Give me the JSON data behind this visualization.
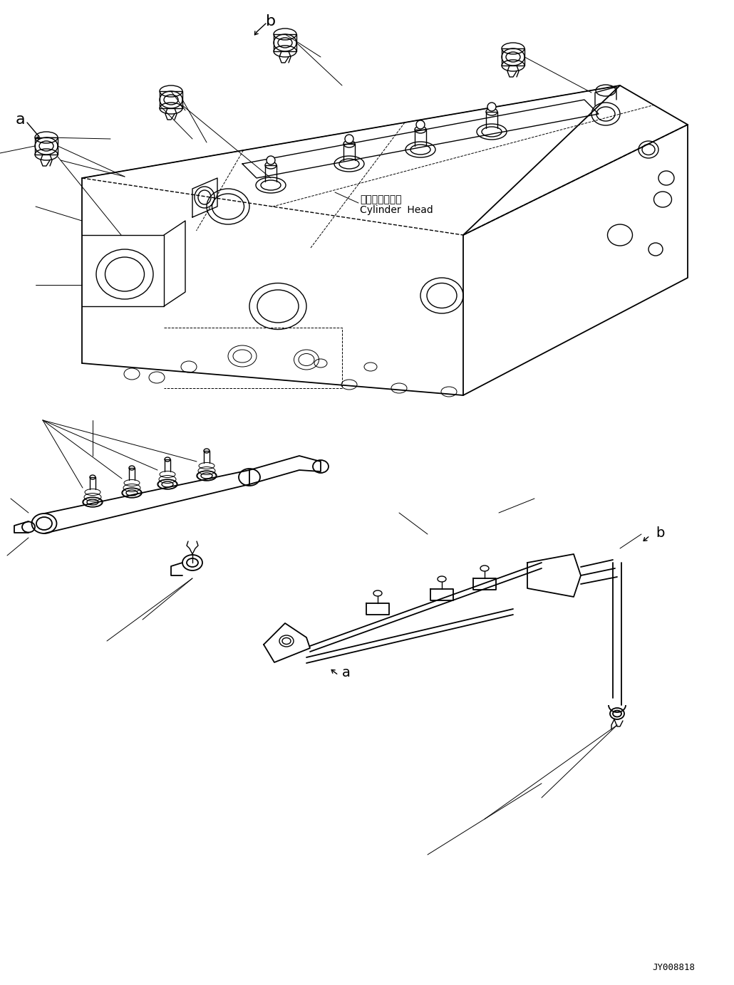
{
  "background_color": "#ffffff",
  "line_color": "#000000",
  "label_a_top": "a",
  "label_b_top": "b",
  "label_a_bottom": "a",
  "label_b_bottom": "b",
  "cylinder_head_jp": "シリンダヘッド",
  "cylinder_head_en": "Cylinder  Head",
  "part_number": "JY008818",
  "fig_width": 1030,
  "fig_height": 1383,
  "lw_main": 1.3,
  "lw_med": 1.0,
  "lw_thin": 0.7
}
